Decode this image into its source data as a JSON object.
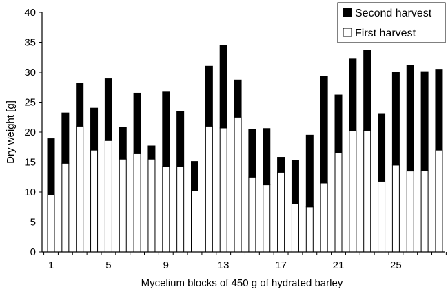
{
  "chart_data": {
    "type": "bar",
    "stacked": true,
    "title": "",
    "xlabel": "Mycelium blocks of 450 g of hydrated barley",
    "ylabel": "Dry weight [g]",
    "ylim": [
      0,
      40
    ],
    "yticks": [
      "0",
      "5",
      "10",
      "15",
      "20",
      "25",
      "30",
      "35",
      "40"
    ],
    "xtick_labels": [
      "1",
      "5",
      "9",
      "13",
      "17",
      "21",
      "25"
    ],
    "xtick_positions": [
      1,
      5,
      9,
      13,
      17,
      21,
      25
    ],
    "categories": [
      1,
      2,
      3,
      4,
      5,
      6,
      7,
      8,
      9,
      10,
      11,
      12,
      13,
      14,
      15,
      16,
      17,
      18,
      19,
      20,
      21,
      22,
      23,
      24,
      25,
      26,
      27,
      28
    ],
    "legend_position": "top-right",
    "grid": false,
    "series": [
      {
        "name": "First harvest",
        "color": "#ffffff",
        "values": [
          9.5,
          14.8,
          21.0,
          17.0,
          18.6,
          15.5,
          16.4,
          15.5,
          14.3,
          14.2,
          10.2,
          21.0,
          20.7,
          22.5,
          12.5,
          11.2,
          13.3,
          8.0,
          7.5,
          11.5,
          16.5,
          20.2,
          20.3,
          11.8,
          14.5,
          13.5,
          13.6,
          17.0
        ]
      },
      {
        "name": "Second harvest",
        "color": "#000000",
        "values": [
          9.4,
          8.4,
          7.2,
          7.0,
          10.3,
          5.3,
          10.1,
          2.2,
          12.5,
          9.3,
          4.9,
          10.0,
          13.8,
          6.2,
          8.0,
          9.4,
          2.5,
          7.3,
          12.0,
          17.8,
          9.7,
          12.0,
          13.4,
          11.3,
          15.5,
          17.6,
          16.5,
          13.5
        ]
      }
    ]
  }
}
